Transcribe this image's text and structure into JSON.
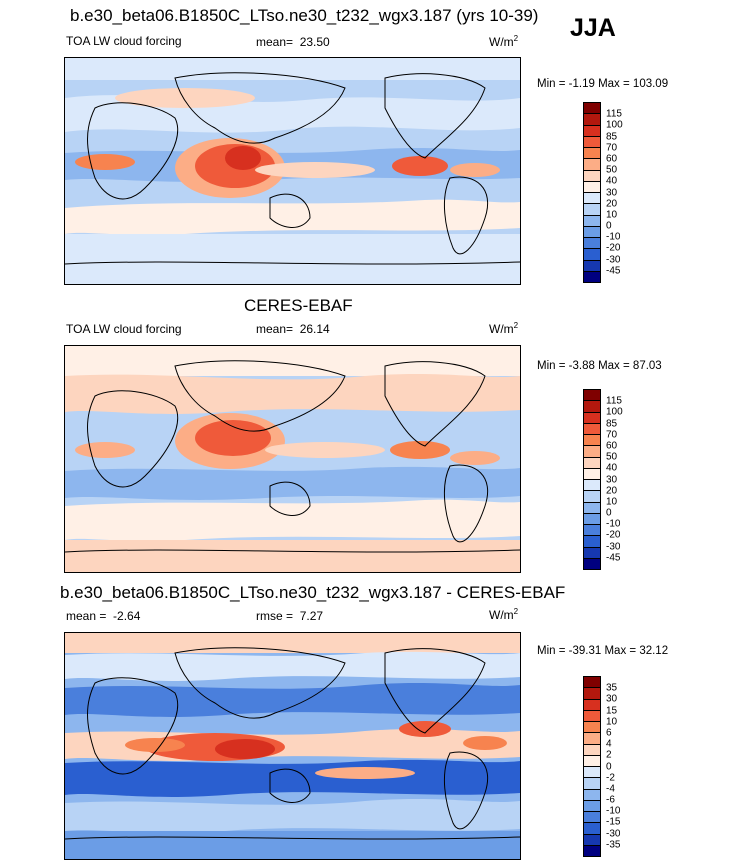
{
  "season": "JJA",
  "panels": [
    {
      "title": "b.e30_beta06.B1850C_LTso.ne30_t232_wgx3.187 (yrs 10-39)",
      "variable": "TOA LW cloud forcing",
      "mean_label": "mean=",
      "mean_value": "23.50",
      "units": "W/m",
      "units_sup": "2",
      "min_label": "Min =",
      "min_value": "-1.19",
      "max_label": "Max =",
      "max_value": "103.09",
      "levels": [
        "115",
        "100",
        "85",
        "70",
        "60",
        "50",
        "40",
        "30",
        "20",
        "10",
        "0",
        "-10",
        "-20",
        "-30",
        "-45"
      ],
      "colors": [
        "#7f0000",
        "#b2180e",
        "#d7301f",
        "#ef5a3a",
        "#f7834f",
        "#fcad86",
        "#fdd5bf",
        "#fff0e6",
        "#dbe9fb",
        "#b8d3f5",
        "#8db6ee",
        "#6b9de6",
        "#4a7fdc",
        "#2a5fd0",
        "#1638b0",
        "#000080"
      ]
    },
    {
      "title": "CERES-EBAF",
      "variable": "TOA LW cloud forcing",
      "mean_label": "mean=",
      "mean_value": "26.14",
      "units": "W/m",
      "units_sup": "2",
      "min_label": "Min =",
      "min_value": "-3.88",
      "max_label": "Max =",
      "max_value": "87.03",
      "levels": [
        "115",
        "100",
        "85",
        "70",
        "60",
        "50",
        "40",
        "30",
        "20",
        "10",
        "0",
        "-10",
        "-20",
        "-30",
        "-45"
      ],
      "colors": [
        "#7f0000",
        "#b2180e",
        "#d7301f",
        "#ef5a3a",
        "#f7834f",
        "#fcad86",
        "#fdd5bf",
        "#fff0e6",
        "#dbe9fb",
        "#b8d3f5",
        "#8db6ee",
        "#6b9de6",
        "#4a7fdc",
        "#2a5fd0",
        "#1638b0",
        "#000080"
      ]
    },
    {
      "title": "b.e30_beta06.B1850C_LTso.ne30_t232_wgx3.187 - CERES-EBAF",
      "mean_label": "mean =",
      "mean_value": "-2.64",
      "rmse_label": "rmse =",
      "rmse_value": "7.27",
      "units": "W/m",
      "units_sup": "2",
      "min_label": "Min =",
      "min_value": "-39.31",
      "max_label": "Max =",
      "max_value": "32.12",
      "levels": [
        "35",
        "30",
        "15",
        "10",
        "6",
        "4",
        "2",
        "0",
        "-2",
        "-4",
        "-6",
        "-10",
        "-15",
        "-30",
        "-35"
      ],
      "colors": [
        "#7f0000",
        "#b2180e",
        "#d7301f",
        "#ef5a3a",
        "#f7834f",
        "#fcad86",
        "#fdd5bf",
        "#fff0e6",
        "#dbe9fb",
        "#b8d3f5",
        "#8db6ee",
        "#6b9de6",
        "#4a7fdc",
        "#2a5fd0",
        "#1638b0",
        "#000080"
      ]
    }
  ]
}
